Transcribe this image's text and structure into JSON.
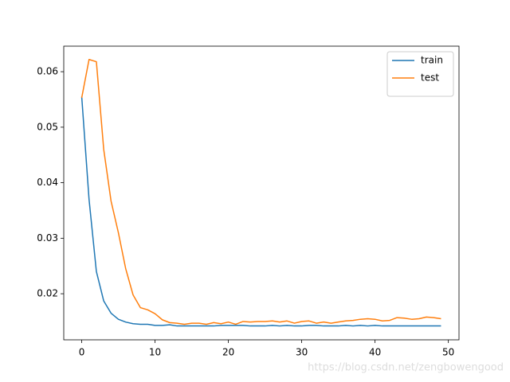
{
  "chart_data": {
    "type": "line",
    "x": [
      0,
      1,
      2,
      3,
      4,
      5,
      6,
      7,
      8,
      9,
      10,
      11,
      12,
      13,
      14,
      15,
      16,
      17,
      18,
      19,
      20,
      21,
      22,
      23,
      24,
      25,
      26,
      27,
      28,
      29,
      30,
      31,
      32,
      33,
      34,
      35,
      36,
      37,
      38,
      39,
      40,
      41,
      42,
      43,
      44,
      45,
      46,
      47,
      48,
      49
    ],
    "series": [
      {
        "name": "train",
        "color": "#1f77b4",
        "values": [
          0.0555,
          0.037,
          0.024,
          0.0187,
          0.0165,
          0.0154,
          0.0149,
          0.0146,
          0.0145,
          0.0145,
          0.0143,
          0.0143,
          0.0144,
          0.0142,
          0.0142,
          0.0142,
          0.0142,
          0.0142,
          0.0142,
          0.0143,
          0.0143,
          0.0143,
          0.0143,
          0.0142,
          0.0142,
          0.0142,
          0.0143,
          0.0142,
          0.0143,
          0.0142,
          0.0142,
          0.0143,
          0.0143,
          0.0142,
          0.0142,
          0.0142,
          0.0143,
          0.0142,
          0.0143,
          0.0142,
          0.0143,
          0.0142,
          0.0142,
          0.0142,
          0.0142,
          0.0142,
          0.0142,
          0.0142,
          0.0142,
          0.0142
        ]
      },
      {
        "name": "test",
        "color": "#ff7f0e",
        "values": [
          0.0553,
          0.0622,
          0.0618,
          0.046,
          0.0367,
          0.031,
          0.0245,
          0.0198,
          0.0175,
          0.0171,
          0.0164,
          0.0153,
          0.0148,
          0.0147,
          0.0145,
          0.0147,
          0.0147,
          0.0145,
          0.0148,
          0.0146,
          0.0149,
          0.0145,
          0.015,
          0.0149,
          0.015,
          0.015,
          0.0151,
          0.0149,
          0.0151,
          0.0147,
          0.015,
          0.0151,
          0.0147,
          0.0149,
          0.0147,
          0.0149,
          0.0151,
          0.0152,
          0.0154,
          0.0155,
          0.0154,
          0.0151,
          0.0152,
          0.0157,
          0.0156,
          0.0154,
          0.0155,
          0.0158,
          0.0157,
          0.0155
        ]
      }
    ],
    "xlim": [
      -2.45,
      51.45
    ],
    "xticks": [
      0,
      10,
      20,
      30,
      40,
      50
    ],
    "ylim": [
      0.0117,
      0.0646
    ],
    "yticks": [
      0.02,
      0.03,
      0.04,
      0.05,
      0.06
    ],
    "legend": "upper right",
    "watermark": "https://blog.csdn.net/zengbowengood"
  }
}
